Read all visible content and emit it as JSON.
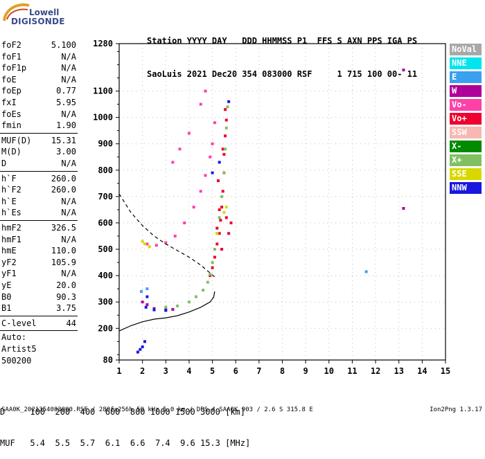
{
  "logo": {
    "line1": "Lowell",
    "line2": "DIGISONDE"
  },
  "header": {
    "line1": "Station YYYY DAY   DDD HHMMSS P1  FFS S AXN PPS IGA PS",
    "line2": "SaoLuis 2021 Dec20 354 083000 RSF     1 715 100 00- 11"
  },
  "params": {
    "group1": [
      {
        "label": "foF2",
        "value": "5.100"
      },
      {
        "label": "foF1",
        "value": "N/A"
      },
      {
        "label": "foF1p",
        "value": "N/A"
      },
      {
        "label": "foE",
        "value": "N/A"
      },
      {
        "label": "foEp",
        "value": "0.77"
      },
      {
        "label": "fxI",
        "value": "5.95"
      },
      {
        "label": "foEs",
        "value": "N/A"
      },
      {
        "label": "fmin",
        "value": "1.90"
      }
    ],
    "group2": [
      {
        "label": "MUF(D)",
        "value": "15.31"
      },
      {
        "label": "M(D)",
        "value": "3.00"
      },
      {
        "label": "D",
        "value": "N/A"
      }
    ],
    "group3": [
      {
        "label": "h`F",
        "value": "260.0"
      },
      {
        "label": "h`F2",
        "value": "260.0"
      },
      {
        "label": "h`E",
        "value": "N/A"
      },
      {
        "label": "h`Es",
        "value": "N/A"
      }
    ],
    "group4": [
      {
        "label": "hmF2",
        "value": "326.5"
      },
      {
        "label": "hmF1",
        "value": "N/A"
      },
      {
        "label": "hmE",
        "value": "110.0"
      },
      {
        "label": "yF2",
        "value": "105.9"
      },
      {
        "label": "yF1",
        "value": "N/A"
      },
      {
        "label": "yE",
        "value": "20.0"
      },
      {
        "label": "B0",
        "value": "90.3"
      },
      {
        "label": "B1",
        "value": "3.75"
      }
    ],
    "clevel": {
      "label": "C-level",
      "value": "44"
    },
    "auto": [
      "Auto:",
      "Artist5",
      "500200"
    ]
  },
  "legend": [
    {
      "label": "NoVal",
      "color": "#a8a8a8"
    },
    {
      "label": "NNE",
      "color": "#00e5ee"
    },
    {
      "label": "E",
      "color": "#3ca0f0"
    },
    {
      "label": "W",
      "color": "#b0009a"
    },
    {
      "label": "Vo-",
      "color": "#ff40a8"
    },
    {
      "label": "Vo+",
      "color": "#ee0030"
    },
    {
      "label": "SSW",
      "color": "#f6b8b0"
    },
    {
      "label": "X-",
      "color": "#008a00"
    },
    {
      "label": "X+",
      "color": "#80c060"
    },
    {
      "label": "SSE",
      "color": "#d8d800"
    },
    {
      "label": "NNW",
      "color": "#1818e0"
    }
  ],
  "muf_table": {
    "line1": "D     100  200  400  600  800 1000 1500 3000 [km]",
    "line2": "MUF   5.4  5.5  5.7  6.1  6.6  7.4  9.6 15.3 [MHz]"
  },
  "footer": {
    "left": "SAA0K_2021354083000.RSF / 280fx256h 50 kHz 5.0 km / DPS-4 SAA0K 903 / 2.6 S 315.8 E",
    "right": "Ion2Png 1.3.17"
  },
  "chart_data": {
    "type": "scatter",
    "title": "",
    "xlabel": "",
    "ylabel": "",
    "xlim": [
      1,
      15
    ],
    "ylim": [
      80,
      1280
    ],
    "x_ticks": [
      1,
      2,
      3,
      4,
      5,
      6,
      7,
      8,
      9,
      10,
      11,
      12,
      13,
      14,
      15
    ],
    "y_ticks": [
      80,
      200,
      300,
      400,
      500,
      600,
      700,
      800,
      900,
      1000,
      1100,
      1280
    ],
    "series": [
      {
        "name": "O-trace",
        "color_key": "Vo+",
        "points": [
          [
            4.9,
            400
          ],
          [
            5.0,
            430
          ],
          [
            5.1,
            470
          ],
          [
            5.2,
            520
          ],
          [
            5.3,
            560
          ],
          [
            5.35,
            610
          ],
          [
            5.4,
            660
          ],
          [
            5.45,
            720
          ],
          [
            5.5,
            790
          ],
          [
            5.5,
            860
          ],
          [
            5.55,
            930
          ],
          [
            5.6,
            990
          ],
          [
            5.55,
            1030
          ],
          [
            5.3,
            650
          ],
          [
            5.2,
            580
          ],
          [
            5.4,
            500
          ],
          [
            5.6,
            620
          ],
          [
            5.7,
            560
          ],
          [
            5.8,
            600
          ],
          [
            5.25,
            760
          ],
          [
            5.45,
            880
          ]
        ]
      },
      {
        "name": "low-F-trace",
        "color_key": "X+",
        "points": [
          [
            2.5,
            275
          ],
          [
            3.0,
            280
          ],
          [
            3.5,
            285
          ],
          [
            4.0,
            300
          ],
          [
            4.3,
            320
          ],
          [
            4.6,
            345
          ],
          [
            4.8,
            375
          ],
          [
            4.9,
            405
          ],
          [
            5.0,
            450
          ],
          [
            5.1,
            500
          ],
          [
            5.2,
            560
          ],
          [
            5.3,
            620
          ],
          [
            5.4,
            700
          ],
          [
            5.5,
            790
          ],
          [
            5.55,
            880
          ],
          [
            5.6,
            960
          ],
          [
            5.65,
            1040
          ]
        ]
      },
      {
        "name": "W-trace",
        "color_key": "W",
        "points": [
          [
            2.2,
            290
          ],
          [
            2.5,
            275
          ],
          [
            3.0,
            270
          ],
          [
            3.3,
            272
          ],
          [
            2.0,
            300
          ]
        ]
      },
      {
        "name": "NNW-points",
        "color_key": "NNW",
        "points": [
          [
            1.9,
            120
          ],
          [
            2.0,
            130
          ],
          [
            2.1,
            150
          ],
          [
            1.8,
            110
          ],
          [
            2.15,
            280
          ],
          [
            2.2,
            320
          ],
          [
            2.5,
            270
          ],
          [
            3.0,
            268
          ],
          [
            5.7,
            1060
          ],
          [
            5.3,
            830
          ],
          [
            5.0,
            790
          ]
        ]
      },
      {
        "name": "upper-trace",
        "color_key": "Vo-",
        "points": [
          [
            2.2,
            520
          ],
          [
            2.6,
            515
          ],
          [
            3.0,
            525
          ],
          [
            3.4,
            550
          ],
          [
            3.8,
            600
          ],
          [
            4.2,
            660
          ],
          [
            4.5,
            720
          ],
          [
            4.7,
            780
          ],
          [
            4.9,
            850
          ],
          [
            5.0,
            900
          ],
          [
            5.1,
            980
          ],
          [
            3.3,
            830
          ],
          [
            3.6,
            880
          ],
          [
            4.0,
            940
          ],
          [
            4.5,
            1050
          ],
          [
            4.7,
            1100
          ]
        ]
      },
      {
        "name": "SSE-points",
        "color_key": "SSE",
        "points": [
          [
            2.0,
            530
          ],
          [
            2.1,
            520
          ],
          [
            2.3,
            510
          ],
          [
            5.5,
            640
          ],
          [
            5.6,
            660
          ],
          [
            5.2,
            560
          ]
        ]
      },
      {
        "name": "E-points",
        "color_key": "E",
        "points": [
          [
            11.6,
            415
          ],
          [
            1.95,
            340
          ],
          [
            2.2,
            350
          ]
        ]
      },
      {
        "name": "isolated-W",
        "color_key": "W",
        "points": [
          [
            13.2,
            1180
          ],
          [
            13.2,
            655
          ]
        ]
      },
      {
        "name": "profile-line",
        "color_key": "line",
        "points": [
          [
            1.0,
            190
          ],
          [
            1.5,
            210
          ],
          [
            2.0,
            225
          ],
          [
            2.5,
            235
          ],
          [
            3.0,
            240
          ],
          [
            3.5,
            248
          ],
          [
            4.0,
            262
          ],
          [
            4.5,
            280
          ],
          [
            4.9,
            300
          ],
          [
            5.05,
            318
          ],
          [
            5.1,
            340
          ]
        ]
      },
      {
        "name": "dashed-curve",
        "color_key": "dashed",
        "points": [
          [
            1.0,
            710
          ],
          [
            1.5,
            640
          ],
          [
            2.0,
            590
          ],
          [
            2.5,
            550
          ],
          [
            3.0,
            520
          ],
          [
            3.5,
            495
          ],
          [
            4.0,
            470
          ],
          [
            4.5,
            440
          ],
          [
            4.9,
            410
          ],
          [
            5.1,
            395
          ]
        ]
      }
    ]
  }
}
